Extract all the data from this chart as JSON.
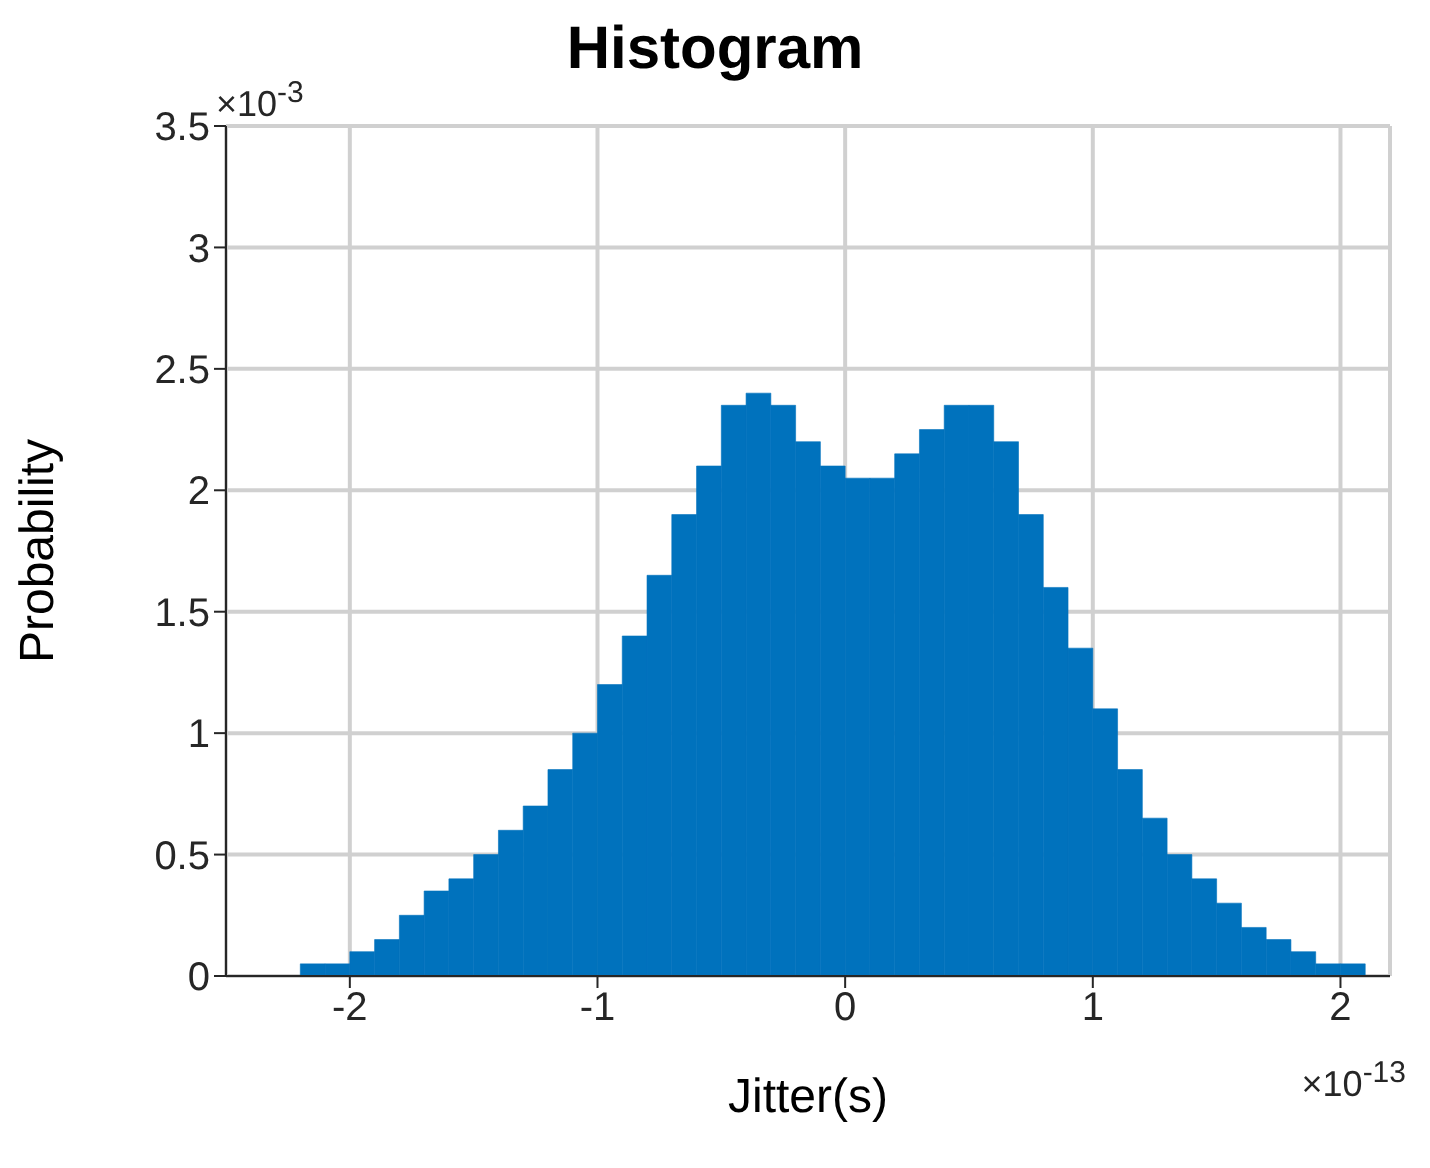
{
  "chart_data": {
    "type": "histogram",
    "title": "Histogram",
    "xlabel": "Jitter(s)",
    "ylabel": "Probability",
    "bins": [
      -2.2,
      -2.1,
      -2.0,
      -1.9,
      -1.8,
      -1.7,
      -1.6,
      -1.5,
      -1.4,
      -1.3,
      -1.2,
      -1.1,
      -1.0,
      -0.9,
      -0.8,
      -0.7,
      -0.6,
      -0.5,
      -0.4,
      -0.3,
      -0.2,
      -0.1,
      0,
      0.1,
      0.2,
      0.3,
      0.4,
      0.5,
      0.6,
      0.7,
      0.8,
      0.9,
      1.0,
      1.1,
      1.2,
      1.3,
      1.4,
      1.5,
      1.6,
      1.7,
      1.8,
      1.9,
      2.0,
      2.1
    ],
    "values": [
      0.05,
      0.05,
      0.1,
      0.15,
      0.25,
      0.35,
      0.4,
      0.5,
      0.6,
      0.7,
      0.85,
      1.0,
      1.2,
      1.4,
      1.65,
      1.9,
      2.1,
      2.35,
      2.4,
      2.35,
      2.2,
      2.1,
      2.05,
      2.05,
      2.15,
      2.25,
      2.35,
      2.35,
      2.2,
      1.9,
      1.6,
      1.35,
      1.1,
      0.85,
      0.65,
      0.5,
      0.4,
      0.3,
      0.2,
      0.15,
      0.1,
      0.05,
      0.05
    ],
    "color": "#0072bd",
    "xlim": [
      -2.5,
      2.2
    ],
    "xticks": [
      -2,
      -1,
      0,
      1,
      2
    ],
    "ylim": [
      0,
      3.5
    ],
    "yticks": [
      0,
      0.5,
      1,
      1.5,
      2,
      2.5,
      3,
      3.5
    ],
    "grid": true,
    "annotations": [
      "×10$^{-3}$",
      "×10$^{-13}$"
    ]
  }
}
